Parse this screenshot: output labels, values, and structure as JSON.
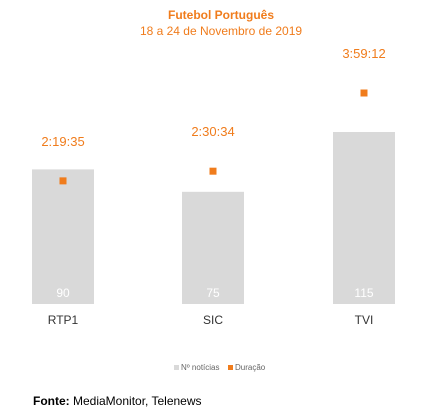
{
  "chart_data": {
    "type": "bar",
    "title": "Futebol Português",
    "subtitle": "18 a 24 de Novembro de 2019",
    "categories": [
      "RTP1",
      "SIC",
      "TVI"
    ],
    "series": [
      {
        "name": "Nº notícias",
        "type": "bar",
        "values": [
          90,
          75,
          115
        ],
        "color": "#D9D9D9",
        "ylim": [
          0,
          130
        ]
      },
      {
        "name": "Duração",
        "type": "scatter",
        "values": [
          "2:19:35",
          "2:30:34",
          "3:59:12"
        ],
        "seconds": [
          8375,
          9034,
          14352
        ],
        "color": "#F07C1C",
        "ylim": [
          0,
          16000
        ]
      }
    ],
    "legend_position": "bottom-center",
    "grid": false
  },
  "source": {
    "label": "Fonte:",
    "text": "MediaMonitor, Telenews"
  }
}
